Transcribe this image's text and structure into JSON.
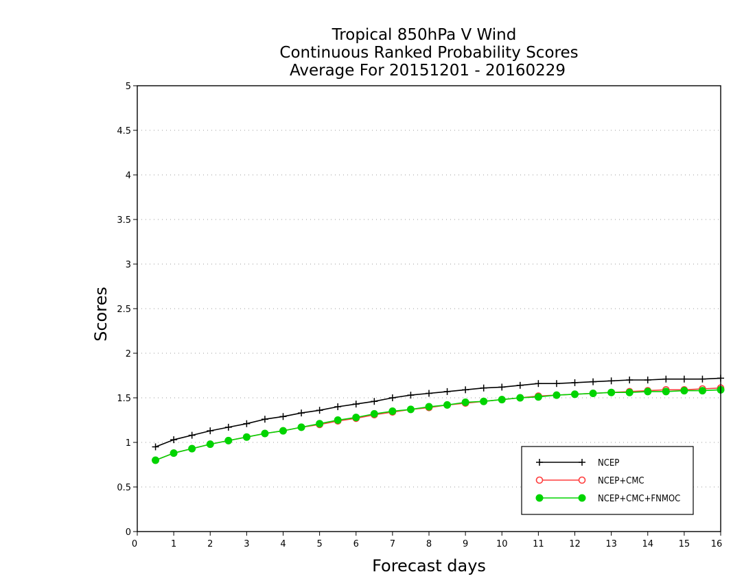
{
  "chart_data": {
    "type": "line",
    "title_lines": [
      "Tropical 850hPa V Wind",
      "Continuous Ranked Probability Scores",
      "Average For 20151201 - 20160229"
    ],
    "xlabel": "Forecast days",
    "ylabel": "Scores",
    "xlim": [
      0,
      16
    ],
    "ylim": [
      0,
      5
    ],
    "x_ticks": [
      0,
      1,
      2,
      3,
      4,
      5,
      6,
      7,
      8,
      9,
      10,
      11,
      12,
      13,
      14,
      15,
      16
    ],
    "y_ticks": [
      0,
      0.5,
      1,
      1.5,
      2,
      2.5,
      3,
      3.5,
      4,
      4.5,
      5
    ],
    "y_tick_labels": [
      "0",
      "0.5",
      "1",
      "1.5",
      "2",
      "2.5",
      "3",
      "3.5",
      "4",
      "4.5",
      "5"
    ],
    "grid": "horizontal dotted",
    "legend_position": "bottom-right",
    "x": [
      0.5,
      1,
      1.5,
      2,
      2.5,
      3,
      3.5,
      4,
      4.5,
      5,
      5.5,
      6,
      6.5,
      7,
      7.5,
      8,
      8.5,
      9,
      9.5,
      10,
      10.5,
      11,
      11.5,
      12,
      12.5,
      13,
      13.5,
      14,
      14.5,
      15,
      15.5,
      16
    ],
    "series": [
      {
        "name": "NCEP",
        "color": "#000000",
        "marker": "plus",
        "values": [
          0.95,
          1.03,
          1.08,
          1.13,
          1.17,
          1.21,
          1.26,
          1.29,
          1.33,
          1.36,
          1.4,
          1.43,
          1.46,
          1.5,
          1.53,
          1.55,
          1.57,
          1.59,
          1.61,
          1.62,
          1.64,
          1.66,
          1.66,
          1.67,
          1.68,
          1.69,
          1.7,
          1.7,
          1.71,
          1.71,
          1.71,
          1.72
        ]
      },
      {
        "name": "NCEP+CMC",
        "color": "#ff3b3b",
        "marker": "open-circle",
        "values": [
          0.8,
          0.88,
          0.93,
          0.98,
          1.02,
          1.06,
          1.1,
          1.13,
          1.17,
          1.2,
          1.24,
          1.27,
          1.31,
          1.34,
          1.37,
          1.39,
          1.42,
          1.44,
          1.46,
          1.48,
          1.5,
          1.52,
          1.53,
          1.54,
          1.55,
          1.56,
          1.57,
          1.58,
          1.59,
          1.59,
          1.6,
          1.61
        ]
      },
      {
        "name": "NCEP+CMC+FNMOC",
        "color": "#00d400",
        "marker": "filled-circle",
        "values": [
          0.8,
          0.88,
          0.93,
          0.98,
          1.02,
          1.06,
          1.1,
          1.13,
          1.17,
          1.21,
          1.25,
          1.28,
          1.32,
          1.35,
          1.37,
          1.4,
          1.42,
          1.45,
          1.46,
          1.48,
          1.5,
          1.51,
          1.53,
          1.54,
          1.55,
          1.56,
          1.56,
          1.57,
          1.57,
          1.58,
          1.58,
          1.59
        ]
      }
    ]
  }
}
